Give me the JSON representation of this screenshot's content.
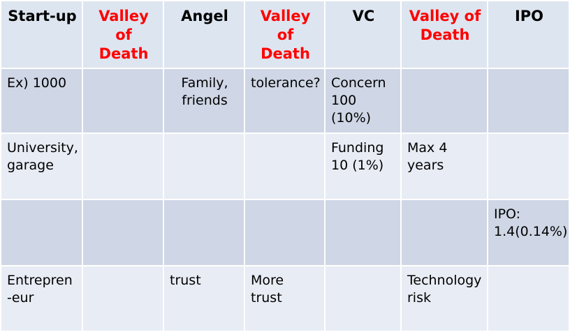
{
  "table": {
    "header": [
      "Start-up",
      "Valley of\nDeath",
      "Angel",
      "Valley of\nDeath",
      "VC",
      "Valley of\nDeath",
      "IPO"
    ],
    "rows": [
      [
        "Ex) 1000",
        null,
        "Family,\nfriends",
        "tolerance?",
        "Concern\n100 (10%)",
        null,
        null
      ],
      [
        "University,\ngarage",
        null,
        null,
        null,
        "Funding\n10 (1%)",
        "Max 4\nyears",
        null
      ],
      [
        null,
        null,
        null,
        null,
        null,
        null,
        "IPO:\n1.4(0.14%)"
      ],
      [
        "Entrepren\n-eur",
        null,
        "trust",
        "More\ntrust",
        null,
        "Technology\nrisk",
        null
      ]
    ]
  }
}
